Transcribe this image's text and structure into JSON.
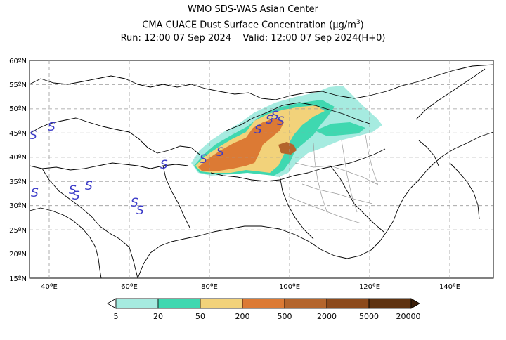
{
  "header": {
    "line1": "WMO SDS-WAS Asian Center",
    "line2_prefix": "CMA CUACE Dust Surface Concentration (",
    "line2_unit_mu": "μg/m",
    "line2_unit_exp": "3",
    "line2_suffix": ")",
    "line3": "Run: 12:00 07 Sep 2024    Valid: 12:00 07 Sep 2024(H+0)"
  },
  "map": {
    "lat_labels": [
      "60ºN",
      "55ºN",
      "50ºN",
      "45ºN",
      "40ºN",
      "35ºN",
      "30ºN",
      "25ºN",
      "20ºN",
      "15ºN"
    ],
    "lon_labels": [
      "40ºE",
      "60ºE",
      "80ºE",
      "100ºE",
      "120ºE",
      "140ºE"
    ],
    "storm_symbol": "S"
  },
  "legend": {
    "ticks": [
      "5",
      "20",
      "50",
      "200",
      "500",
      "2000",
      "5000",
      "20000"
    ],
    "colors": [
      "#a6ebe0",
      "#3fd8b0",
      "#f2d27a",
      "#dc7a34",
      "#b4652c",
      "#8c4a1c",
      "#5e3210",
      "#3a1e08"
    ]
  }
}
